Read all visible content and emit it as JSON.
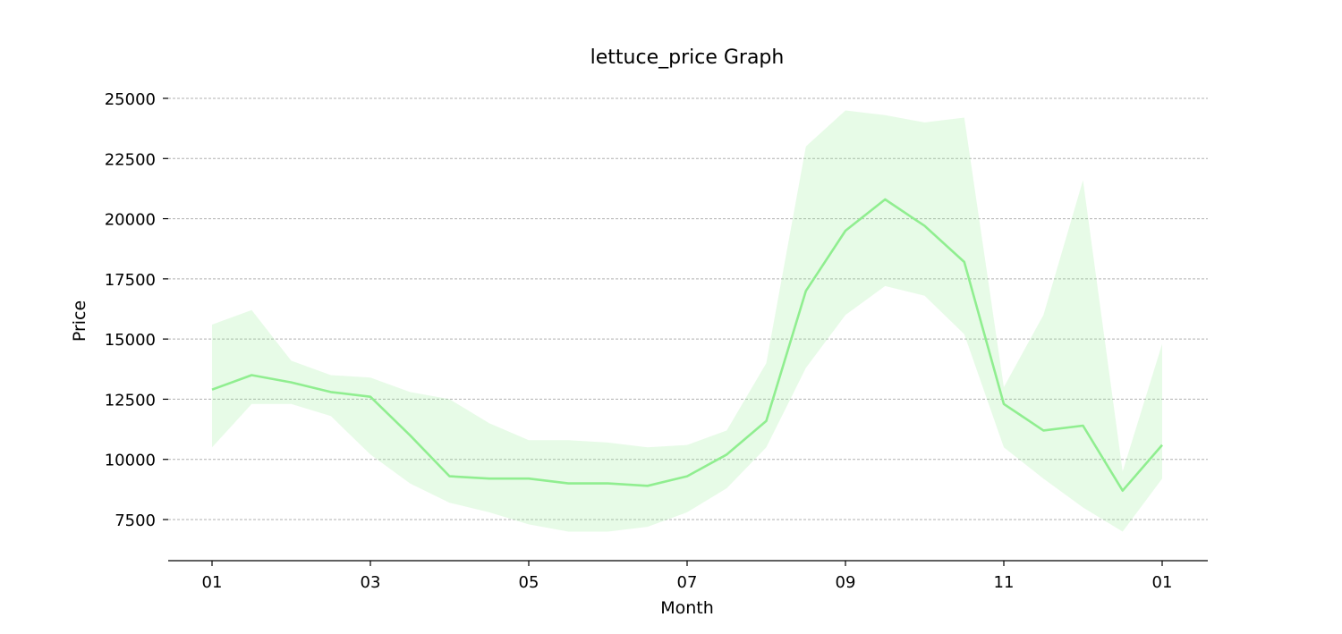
{
  "chart_data": {
    "type": "line",
    "title": "lettuce_price Graph",
    "xlabel": "Month",
    "ylabel": "Price",
    "x_ticks": [
      "01",
      "03",
      "05",
      "07",
      "09",
      "11",
      "01"
    ],
    "y_ticks": [
      7500,
      10000,
      12500,
      15000,
      17500,
      20000,
      22500,
      25000
    ],
    "xlim": [
      0,
      12
    ],
    "ylim": [
      5800,
      25300
    ],
    "grid": "horizontal dashed",
    "legend": "none",
    "series": [
      {
        "color": "#90ee90",
        "x": [
          0,
          0.5,
          1,
          1.5,
          2,
          2.5,
          3,
          3.5,
          4,
          4.5,
          5,
          5.5,
          6,
          6.5,
          7,
          7.5,
          8,
          8.5,
          9,
          9.5,
          10,
          10.5,
          11,
          11.5,
          12
        ],
        "values": [
          12900,
          13500,
          13200,
          12800,
          12600,
          11000,
          9300,
          9200,
          9200,
          9000,
          9000,
          8900,
          9300,
          10200,
          11600,
          17000,
          19500,
          20800,
          19700,
          18200,
          12300,
          11200,
          11400,
          8700,
          10600
        ],
        "band_low": [
          10500,
          12300,
          12300,
          11800,
          10200,
          9000,
          8200,
          7800,
          7300,
          7000,
          7000,
          7200,
          7800,
          8800,
          10500,
          13800,
          16000,
          17200,
          16800,
          15200,
          10500,
          9200,
          8000,
          7000,
          9200
        ],
        "band_high": [
          15600,
          16200,
          14100,
          13500,
          13400,
          12800,
          12500,
          11500,
          10800,
          10800,
          10700,
          10500,
          10600,
          11200,
          14000,
          23000,
          24500,
          24300,
          24000,
          24200,
          13000,
          16000,
          21600,
          9500,
          14800
        ]
      }
    ]
  }
}
